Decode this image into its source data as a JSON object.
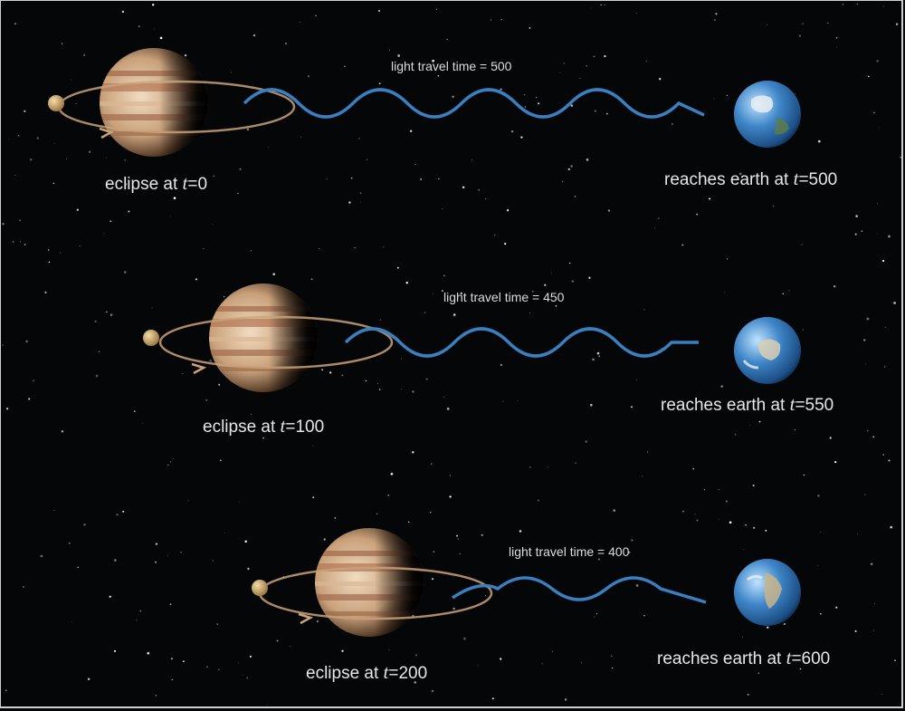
{
  "rows": [
    {
      "light_travel": "light travel time = 500",
      "eclipse_prefix": "eclipse at ",
      "eclipse_var": "t",
      "eclipse_value": "=0",
      "earth_prefix": "reaches earth at ",
      "earth_var": "t",
      "earth_value": "=500"
    },
    {
      "light_travel": "light travel time = 450",
      "eclipse_prefix": "eclipse at ",
      "eclipse_var": "t",
      "eclipse_value": "=100",
      "earth_prefix": "reaches earth at ",
      "earth_var": "t",
      "earth_value": "=550"
    },
    {
      "light_travel": "light travel time = 400",
      "eclipse_prefix": "eclipse at ",
      "eclipse_var": "t",
      "eclipse_value": "=200",
      "earth_prefix": "reaches earth at ",
      "earth_var": "t",
      "earth_value": "=600"
    }
  ],
  "colors": {
    "space": "#050608",
    "wave": "#3a7fc0",
    "orbit": "#c9a27a",
    "text": "#e6e6e6"
  },
  "icons": [
    "jupiter-icon",
    "moon-icon",
    "earth-icon",
    "orbit-arrow-icon"
  ]
}
